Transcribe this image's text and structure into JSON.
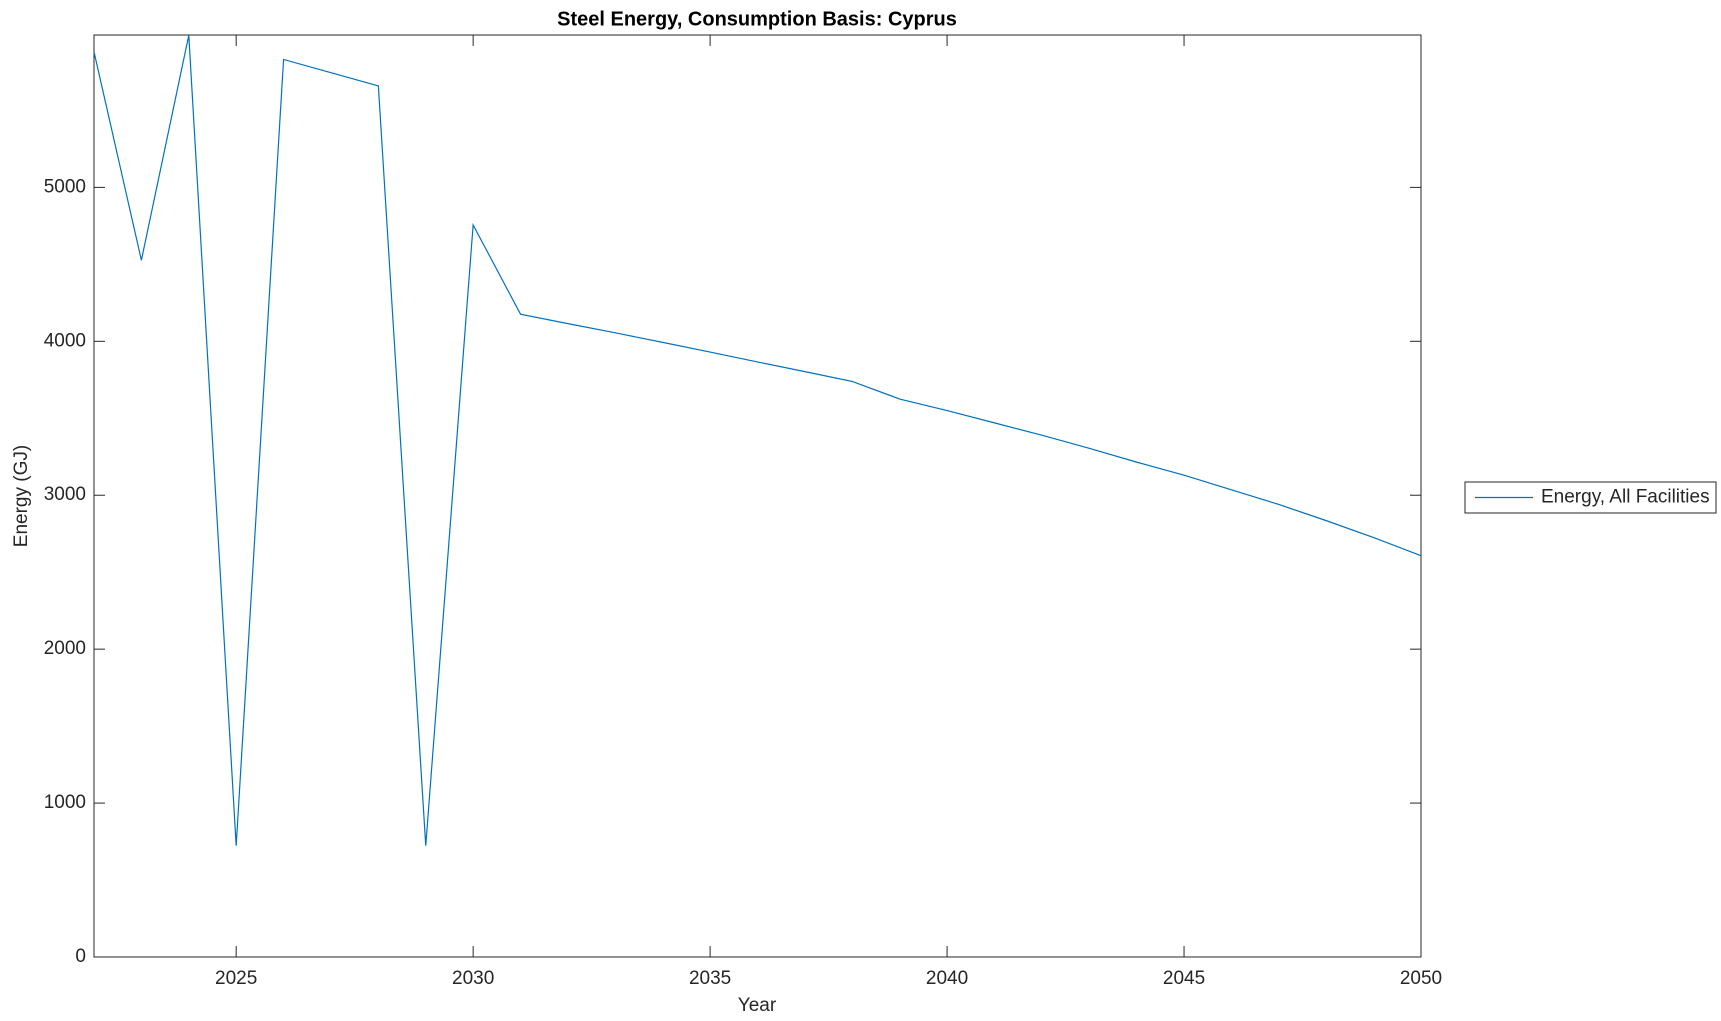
{
  "chart_data": {
    "type": "line",
    "title": "Steel Energy, Consumption Basis: Cyprus",
    "x_label": "Year",
    "y_label": "Energy (GJ)",
    "x": [
      2022,
      2023,
      2024,
      2025,
      2026,
      2027,
      2028,
      2029,
      2030,
      2031,
      2032,
      2033,
      2034,
      2035,
      2036,
      2037,
      2038,
      2039,
      2040,
      2041,
      2042,
      2043,
      2044,
      2045,
      2046,
      2047,
      2048,
      2049,
      2050
    ],
    "series": [
      {
        "name": "Energy, All Facilities",
        "color": "#0072bd",
        "values": [
          5881,
          4527,
          5988,
          723,
          5831,
          5745,
          5659,
          723,
          4756,
          4176,
          4115,
          4055,
          3993,
          3930,
          3866,
          3803,
          3739,
          3625,
          3550,
          3470,
          3390,
          3305,
          3215,
          3130,
          3035,
          2940,
          2835,
          2725,
          2607
        ]
      }
    ],
    "xlim": [
      2022,
      2050
    ],
    "ylim": [
      0,
      5990
    ],
    "xticks": [
      2025,
      2030,
      2035,
      2040,
      2045,
      2050
    ],
    "yticks": [
      0,
      1000,
      2000,
      3000,
      4000,
      5000
    ],
    "legend": "outside-right"
  }
}
